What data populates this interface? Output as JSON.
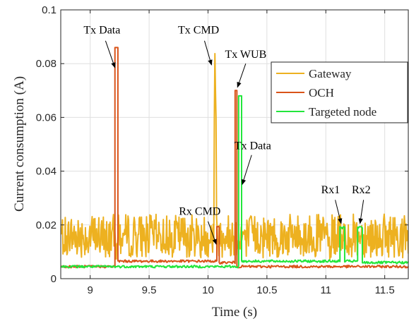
{
  "chart_data": {
    "type": "line",
    "title": "",
    "xlabel": "Time (s)",
    "ylabel": "Current consumption (A)",
    "xlim": [
      8.75,
      11.7
    ],
    "ylim": [
      0,
      0.1
    ],
    "xticks": [
      9,
      9.5,
      10,
      10.5,
      11,
      11.5
    ],
    "xtick_labels": [
      "9",
      "9.5",
      "10",
      "10.5",
      "11",
      "11.5"
    ],
    "yticks": [
      0,
      0.02,
      0.04,
      0.06,
      0.08,
      0.1
    ],
    "ytick_labels": [
      "0",
      "0.02",
      "0.04",
      "0.06",
      "0.08",
      "0.1"
    ],
    "grid": true,
    "legend_position": "top-right",
    "colors": {
      "gateway": "#EDB120",
      "och": "#D95319",
      "targeted": "#22E63C"
    },
    "series": [
      {
        "name": "Gateway",
        "color": "#EDB120",
        "baseline": 0.016,
        "noise_amplitude": 0.008,
        "spikes": [
          {
            "t0": 10.05,
            "t1": 10.07,
            "peak": 0.096
          }
        ]
      },
      {
        "name": "OCH",
        "color": "#D95319",
        "baseline": 0.0045,
        "segments": [
          {
            "t0": 8.75,
            "t1": 9.21,
            "level": 0.0045
          },
          {
            "t0": 9.21,
            "t1": 9.235,
            "level": 0.086
          },
          {
            "t0": 9.235,
            "t1": 10.075,
            "level": 0.0065
          },
          {
            "t0": 10.075,
            "t1": 10.095,
            "level": 0.019
          },
          {
            "t0": 10.095,
            "t1": 10.23,
            "level": 0.006
          },
          {
            "t0": 10.23,
            "t1": 10.245,
            "level": 0.07
          },
          {
            "t0": 10.245,
            "t1": 11.7,
            "level": 0.0045
          }
        ]
      },
      {
        "name": "Targeted node",
        "color": "#22E63C",
        "baseline": 0.0045,
        "segments": [
          {
            "t0": 8.75,
            "t1": 10.26,
            "level": 0.0045
          },
          {
            "t0": 10.26,
            "t1": 10.285,
            "level": 0.068
          },
          {
            "t0": 10.285,
            "t1": 11.12,
            "level": 0.0065
          },
          {
            "t0": 11.12,
            "t1": 11.16,
            "level": 0.019
          },
          {
            "t0": 11.16,
            "t1": 11.27,
            "level": 0.0065
          },
          {
            "t0": 11.27,
            "t1": 11.31,
            "level": 0.019
          },
          {
            "t0": 11.31,
            "t1": 11.7,
            "level": 0.006
          }
        ]
      }
    ],
    "annotations": [
      {
        "text": "Tx Data",
        "text_x": 9.1,
        "text_y": 0.0912,
        "arrow_from": [
          9.13,
          0.0885
        ],
        "arrow_to": [
          9.21,
          0.0785
        ]
      },
      {
        "text": "Tx CMD",
        "text_x": 9.92,
        "text_y": 0.0912,
        "arrow_from": [
          9.97,
          0.0885
        ],
        "arrow_to": [
          10.03,
          0.0795
        ]
      },
      {
        "text": "Tx WUB",
        "text_x": 10.32,
        "text_y": 0.0822,
        "arrow_from": [
          10.32,
          0.08
        ],
        "arrow_to": [
          10.25,
          0.0712
        ]
      },
      {
        "text": "Tx Data",
        "text_x": 10.38,
        "text_y": 0.0482,
        "arrow_from": [
          10.37,
          0.046
        ],
        "arrow_to": [
          10.29,
          0.035
        ]
      },
      {
        "text": "Rx CMD",
        "text_x": 9.93,
        "text_y": 0.0237,
        "arrow_from": [
          10.0,
          0.0213
        ],
        "arrow_to": [
          10.07,
          0.0128
        ]
      },
      {
        "text": "Rx1",
        "text_x": 11.04,
        "text_y": 0.0317,
        "arrow_from": [
          11.08,
          0.0293
        ],
        "arrow_to": [
          11.13,
          0.0205
        ]
      },
      {
        "text": "Rx2",
        "text_x": 11.3,
        "text_y": 0.0317,
        "arrow_from": [
          11.32,
          0.0293
        ],
        "arrow_to": [
          11.29,
          0.0205
        ]
      }
    ]
  }
}
